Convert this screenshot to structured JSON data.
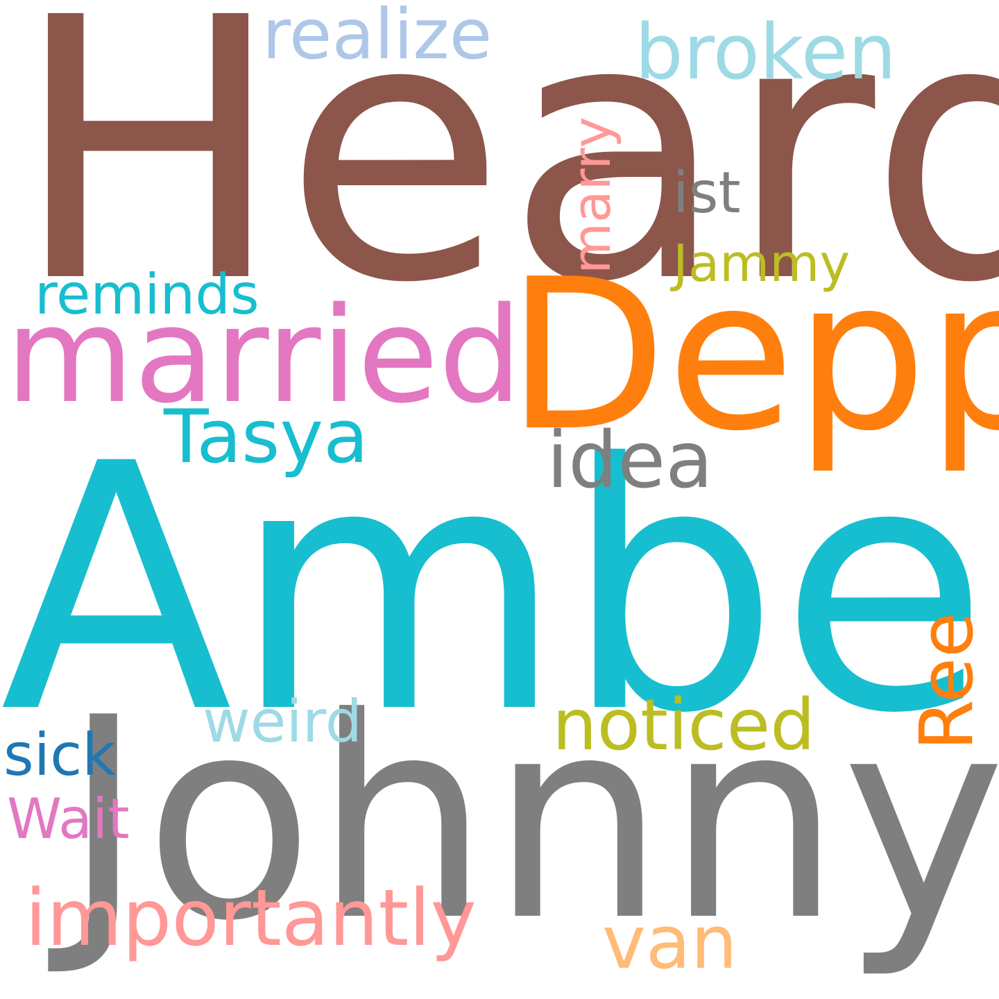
{
  "words": [
    {
      "text": "Heard",
      "color": "#8c564b"
    },
    {
      "text": "Amber",
      "color": "#17becf"
    },
    {
      "text": "Johnny",
      "color": "#7f7f7f"
    },
    {
      "text": "Depp",
      "color": "#ff7f0e"
    },
    {
      "text": "married",
      "color": "#e377c2"
    },
    {
      "text": "realize",
      "color": "#aec7e8"
    },
    {
      "text": "broken",
      "color": "#9edae5"
    },
    {
      "text": "marry",
      "color": "#ff9896"
    },
    {
      "text": "ist",
      "color": "#7f7f7f"
    },
    {
      "text": "Jammy",
      "color": "#bcbd22"
    },
    {
      "text": "reminds",
      "color": "#17becf"
    },
    {
      "text": "Tasya",
      "color": "#17becf"
    },
    {
      "text": "idea",
      "color": "#7f7f7f"
    },
    {
      "text": "Ree",
      "color": "#ff7f0e"
    },
    {
      "text": "weird",
      "color": "#9edae5"
    },
    {
      "text": "noticed",
      "color": "#bcbd22"
    },
    {
      "text": "sick",
      "color": "#1f77b4"
    },
    {
      "text": "Wait",
      "color": "#e377c2"
    },
    {
      "text": "importantly",
      "color": "#ff9896"
    },
    {
      "text": "van",
      "color": "#ffbb78"
    }
  ]
}
